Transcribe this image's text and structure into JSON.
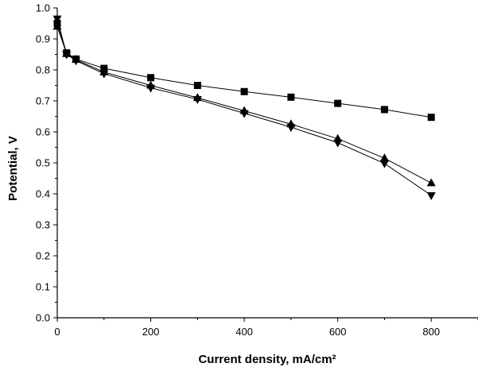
{
  "chart_data": {
    "type": "line",
    "xlabel": "Current density, mA/cm²",
    "ylabel": "Potential, V",
    "xlim": [
      0,
      900
    ],
    "ylim": [
      0.0,
      1.0
    ],
    "x_ticks": [
      0,
      200,
      400,
      600,
      800
    ],
    "x_tick_labels": [
      "0",
      "200",
      "400",
      "600",
      "800"
    ],
    "y_ticks": [
      0.0,
      0.1,
      0.2,
      0.3,
      0.4,
      0.5,
      0.6,
      0.7,
      0.8,
      0.9,
      1.0
    ],
    "y_tick_labels": [
      "0.0",
      "0.1",
      "0.2",
      "0.3",
      "0.4",
      "0.5",
      "0.6",
      "0.7",
      "0.8",
      "0.9",
      "1.0"
    ],
    "grid": false,
    "colors": {
      "line": "#000000",
      "marker": "#000000",
      "axis": "#000000"
    },
    "series": [
      {
        "marker": "square",
        "x": [
          0,
          20,
          40,
          100,
          200,
          300,
          400,
          500,
          600,
          700,
          800
        ],
        "y": [
          0.95,
          0.855,
          0.835,
          0.805,
          0.775,
          0.75,
          0.73,
          0.712,
          0.692,
          0.672,
          0.647
        ]
      },
      {
        "marker": "triangle-up",
        "x": [
          0,
          20,
          40,
          100,
          200,
          300,
          400,
          500,
          600,
          700,
          800
        ],
        "y": [
          0.94,
          0.852,
          0.833,
          0.793,
          0.75,
          0.71,
          0.668,
          0.625,
          0.578,
          0.515,
          0.435
        ]
      },
      {
        "marker": "triangle-down",
        "x": [
          0,
          20,
          40,
          100,
          200,
          300,
          400,
          500,
          600,
          700,
          800
        ],
        "y": [
          0.965,
          0.85,
          0.83,
          0.788,
          0.742,
          0.705,
          0.66,
          0.615,
          0.565,
          0.498,
          0.395
        ]
      }
    ]
  }
}
